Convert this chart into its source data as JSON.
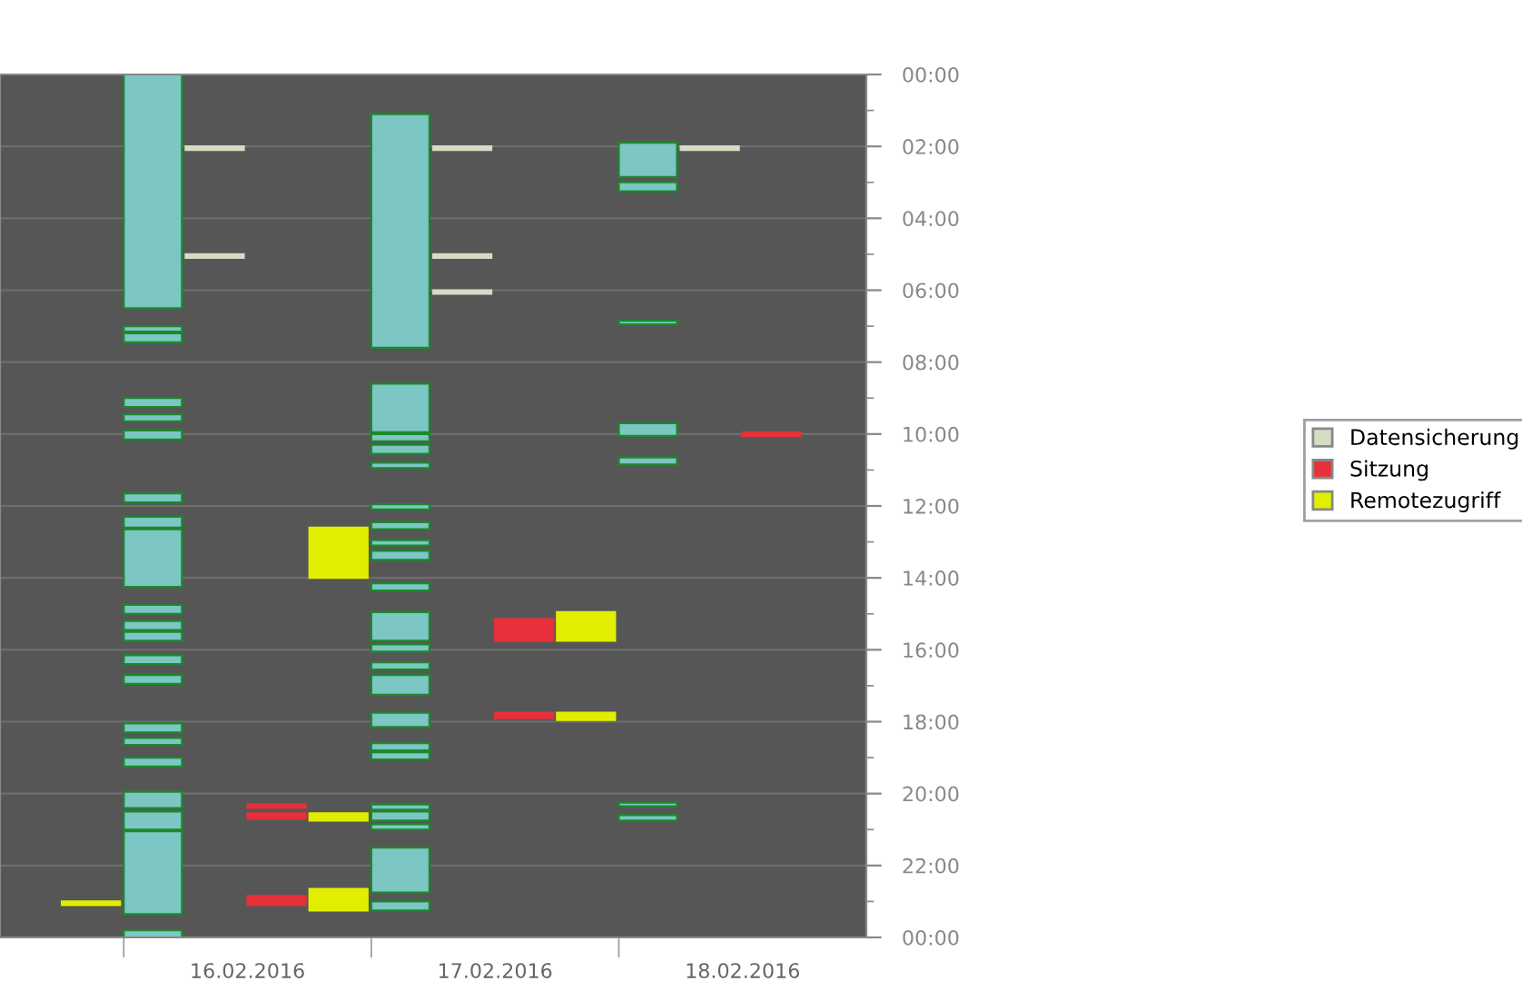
{
  "chart_data": {
    "type": "bar",
    "categories": [
      null,
      "16.02.2016",
      "17.02.2016",
      "18.02.2016"
    ],
    "ylim": [
      24,
      0
    ],
    "yticks": [
      {
        "value": 0,
        "label": "00:00"
      },
      {
        "value": 2,
        "label": "02:00"
      },
      {
        "value": 4,
        "label": "04:00"
      },
      {
        "value": 6,
        "label": "06:00"
      },
      {
        "value": 8,
        "label": "08:00"
      },
      {
        "value": 10,
        "label": "10:00"
      },
      {
        "value": 12,
        "label": "12:00"
      },
      {
        "value": 14,
        "label": "14:00"
      },
      {
        "value": 16,
        "label": "16:00"
      },
      {
        "value": 18,
        "label": "18:00"
      },
      {
        "value": 20,
        "label": "20:00"
      },
      {
        "value": 22,
        "label": "22:00"
      },
      {
        "value": 24,
        "label": "00:00"
      }
    ],
    "grid": "y",
    "legend": "right",
    "series": [
      {
        "color": "#7cc6c4",
        "values": [
          null,
          6.5,
          6.5,
          0.95
        ],
        "base": [
          null,
          0,
          1.1,
          1.9
        ]
      },
      {
        "color": "#7cc6c4",
        "values": [
          null,
          0.15,
          1.35,
          0.25
        ],
        "base": [
          null,
          7.0,
          8.6,
          3.0
        ]
      },
      {
        "color": "#7cc6c4",
        "values": [
          null,
          0.25,
          0.2,
          0.1
        ],
        "base": [
          null,
          7.2,
          10.0,
          6.85
        ]
      },
      {
        "color": "#7cc6c4",
        "values": [
          null,
          0.25,
          0.25,
          0.35
        ],
        "base": [
          null,
          9.0,
          10.3,
          9.7
        ]
      },
      {
        "color": "#7cc6c4",
        "values": [
          null,
          0.2,
          0.15,
          0.2
        ],
        "base": [
          null,
          9.45,
          10.8,
          10.65
        ]
      },
      {
        "color": "#7cc6c4",
        "values": [
          null,
          0.25,
          0.15,
          0.1
        ],
        "base": [
          null,
          9.9,
          11.95,
          20.25
        ]
      },
      {
        "color": "#7cc6c4",
        "values": [
          null,
          0.25,
          0.2,
          0.15
        ],
        "base": [
          null,
          11.65,
          12.45,
          20.6
        ]
      },
      {
        "color": "#7cc6c4",
        "values": [
          null,
          0.3,
          0.15,
          null
        ],
        "base": [
          null,
          12.3,
          12.95,
          null
        ]
      },
      {
        "color": "#7cc6c4",
        "values": [
          null,
          1.6,
          0.25,
          null
        ],
        "base": [
          null,
          12.65,
          13.25,
          null
        ]
      },
      {
        "color": "#7cc6c4",
        "values": [
          null,
          0.25,
          0.2,
          null
        ],
        "base": [
          null,
          14.75,
          14.15,
          null
        ]
      },
      {
        "color": "#7cc6c4",
        "values": [
          null,
          0.25,
          0.8,
          null
        ],
        "base": [
          null,
          15.2,
          14.95,
          null
        ]
      },
      {
        "color": "#7cc6c4",
        "values": [
          null,
          0.25,
          0.2,
          null
        ],
        "base": [
          null,
          15.5,
          15.85,
          null
        ]
      },
      {
        "color": "#7cc6c4",
        "values": [
          null,
          0.25,
          0.2,
          null
        ],
        "base": [
          null,
          16.15,
          16.35,
          null
        ]
      },
      {
        "color": "#7cc6c4",
        "values": [
          null,
          0.25,
          0.55,
          null
        ],
        "base": [
          null,
          16.7,
          16.7,
          null
        ]
      },
      {
        "color": "#7cc6c4",
        "values": [
          null,
          0.25,
          0.4,
          null
        ],
        "base": [
          null,
          18.05,
          17.75,
          null
        ]
      },
      {
        "color": "#7cc6c4",
        "values": [
          null,
          0.2,
          0.2,
          null
        ],
        "base": [
          null,
          18.45,
          18.6,
          null
        ]
      },
      {
        "color": "#7cc6c4",
        "values": [
          null,
          0.25,
          0.2,
          null
        ],
        "base": [
          null,
          19.0,
          18.85,
          null
        ]
      },
      {
        "color": "#7cc6c4",
        "values": [
          null,
          0.45,
          0.15,
          null
        ],
        "base": [
          null,
          19.95,
          20.3,
          null
        ]
      },
      {
        "color": "#7cc6c4",
        "values": [
          null,
          0.5,
          0.25,
          null
        ],
        "base": [
          null,
          20.5,
          20.5,
          null
        ]
      },
      {
        "color": "#7cc6c4",
        "values": [
          null,
          2.3,
          0.15,
          null
        ],
        "base": [
          null,
          21.05,
          20.85,
          null
        ]
      },
      {
        "color": "#7cc6c4",
        "values": [
          null,
          0.2,
          1.25,
          null
        ],
        "base": [
          null,
          23.8,
          21.5,
          null
        ]
      },
      {
        "color": "#7cc6c4",
        "values": [
          null,
          null,
          0.25,
          null
        ],
        "base": [
          null,
          null,
          23.0,
          null
        ]
      },
      {
        "name": "Datensicherung",
        "color": "#d4dcc4",
        "values": [
          null,
          0.1,
          0.1,
          0.1
        ],
        "base": [
          null,
          2.0,
          2.0,
          2.0
        ]
      },
      {
        "color": "#d4dcc4",
        "values": [
          null,
          0.1,
          0.1,
          null
        ],
        "base": [
          null,
          5.0,
          5.0,
          null
        ]
      },
      {
        "color": "#d4dcc4",
        "values": [
          null,
          null,
          0.1,
          null
        ],
        "base": [
          null,
          null,
          6.0,
          null
        ]
      },
      {
        "name": "Sitzung",
        "color": "#e8303a",
        "values": [
          null,
          0.1,
          0.6,
          0.1
        ],
        "base": [
          null,
          20.3,
          15.15,
          9.95
        ]
      },
      {
        "color": "#e8303a",
        "values": [
          null,
          0.15,
          0.15,
          null
        ],
        "base": [
          null,
          20.55,
          17.75,
          null
        ]
      },
      {
        "color": "#e8303a",
        "values": [
          null,
          0.25,
          null,
          null
        ],
        "base": [
          null,
          22.85,
          null,
          null
        ]
      },
      {
        "name": "Remotezugriff",
        "color": "#e2ee00",
        "values": [
          0.1,
          1.4,
          0.8,
          null
        ],
        "base": [
          23.0,
          12.6,
          14.95,
          null
        ]
      },
      {
        "color": "#e2ee00",
        "values": [
          null,
          0.2,
          0.2,
          null
        ],
        "base": [
          null,
          20.55,
          17.75,
          null
        ]
      },
      {
        "color": "#e2ee00",
        "values": [
          null,
          0.6,
          null,
          null
        ],
        "base": [
          null,
          22.65,
          null,
          null
        ]
      }
    ]
  }
}
